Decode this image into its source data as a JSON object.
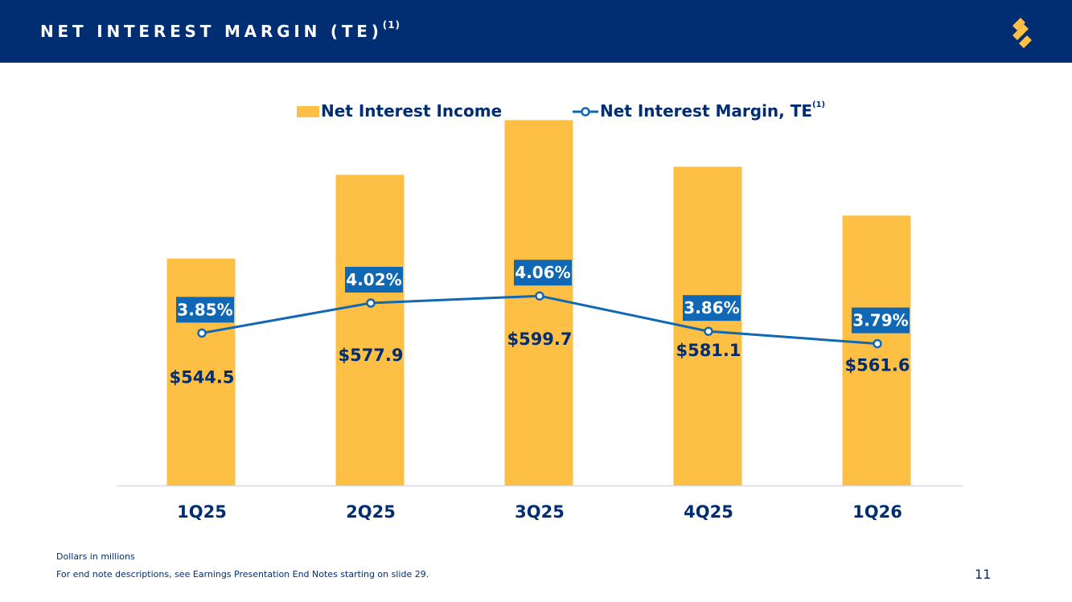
{
  "header": {
    "title": "NET INTEREST MARGIN (TE)",
    "title_note": "(1)",
    "background": "#012d72"
  },
  "logo": {
    "icon": "brand-s-logo-icon",
    "color": "#fec044"
  },
  "legend": {
    "bar_label": "Net Interest Income",
    "line_label": "Net Interest Margin, TE",
    "line_note": "(1)"
  },
  "chart_data": {
    "type": "bar",
    "categories": [
      "1Q25",
      "2Q25",
      "3Q25",
      "4Q25",
      "1Q26"
    ],
    "series": [
      {
        "name": "Net Interest Income",
        "type": "bar",
        "values": [
          544.5,
          577.9,
          599.7,
          581.1,
          561.6
        ],
        "labels": [
          "$544.5",
          "$577.9",
          "$599.7",
          "$581.1",
          "$561.6"
        ],
        "color": "#fec044"
      },
      {
        "name": "Net Interest Margin, TE",
        "type": "line",
        "values": [
          3.85,
          4.02,
          4.06,
          3.86,
          3.79
        ],
        "labels": [
          "3.85%",
          "4.02%",
          "4.06%",
          "3.86%",
          "3.79%"
        ],
        "color": "#1068b4"
      }
    ],
    "legend_position": "top",
    "grid": false
  },
  "footnotes": {
    "units": "Dollars in millions",
    "end_notes": "For end note descriptions, see Earnings Presentation End Notes starting on slide 29."
  },
  "page_number": "11",
  "colors": {
    "navy": "#012d72",
    "gold": "#fec044",
    "blue": "#1068b4"
  }
}
